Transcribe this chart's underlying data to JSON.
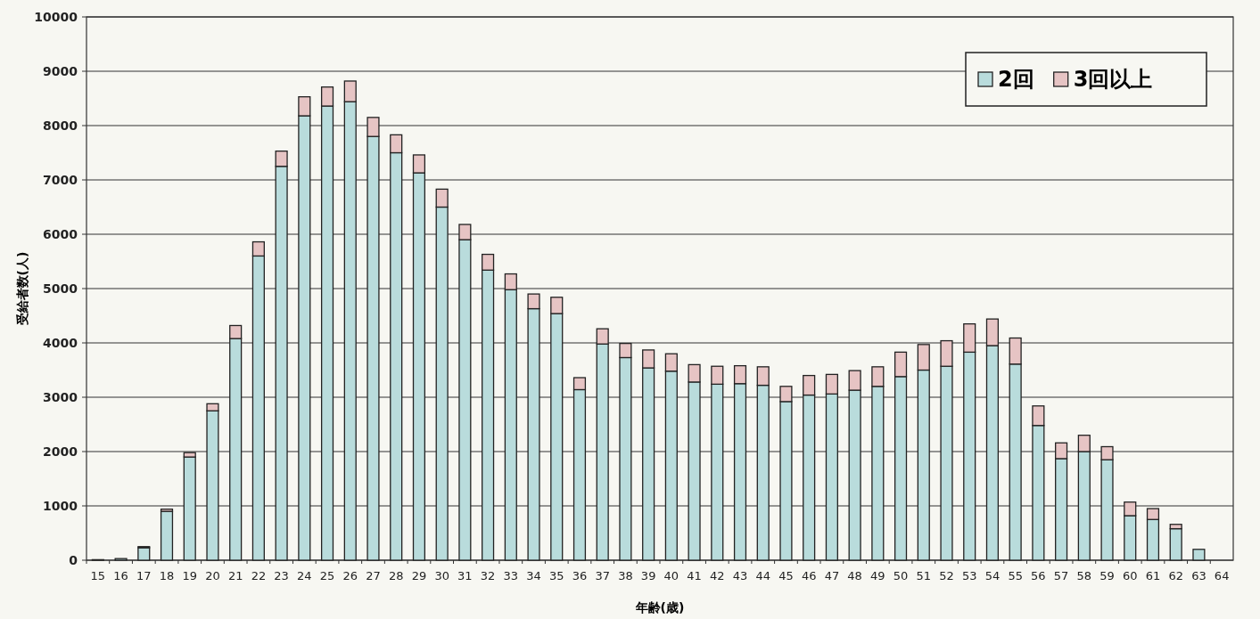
{
  "chart_data": {
    "type": "bar",
    "stacked": true,
    "xlabel": "年齢(歳)",
    "ylabel": "受給者数(人)",
    "categories": [
      "15",
      "16",
      "17",
      "18",
      "19",
      "20",
      "21",
      "22",
      "23",
      "24",
      "25",
      "26",
      "27",
      "28",
      "29",
      "30",
      "31",
      "32",
      "33",
      "34",
      "35",
      "36",
      "37",
      "38",
      "39",
      "40",
      "41",
      "42",
      "43",
      "44",
      "45",
      "46",
      "47",
      "48",
      "49",
      "50",
      "51",
      "52",
      "53",
      "54",
      "55",
      "56",
      "57",
      "58",
      "59",
      "60",
      "61",
      "62",
      "63",
      "64"
    ],
    "series": [
      {
        "name": "2回",
        "color": "#b9dcdc",
        "values": [
          10,
          30,
          230,
          900,
          1900,
          2750,
          4080,
          5600,
          7250,
          8180,
          8360,
          8440,
          7800,
          7500,
          7130,
          6500,
          5900,
          5340,
          4980,
          4630,
          4540,
          3140,
          3980,
          3730,
          3540,
          3480,
          3280,
          3240,
          3250,
          3220,
          2920,
          3040,
          3060,
          3130,
          3200,
          3380,
          3500,
          3570,
          3830,
          3950,
          3610,
          2480,
          1870,
          2000,
          1850,
          820,
          750,
          580,
          200,
          0
        ]
      },
      {
        "name": "3回以上",
        "color": "#e6c4c4",
        "values": [
          null,
          null,
          20,
          40,
          80,
          130,
          240,
          260,
          280,
          350,
          350,
          380,
          350,
          330,
          330,
          330,
          280,
          290,
          290,
          270,
          300,
          220,
          280,
          260,
          330,
          320,
          320,
          330,
          330,
          340,
          280,
          360,
          360,
          360,
          360,
          450,
          470,
          470,
          520,
          490,
          480,
          360,
          290,
          300,
          240,
          250,
          200,
          80,
          0,
          0
        ]
      }
    ],
    "ylim": [
      0,
      10000
    ],
    "yticks": [
      0,
      1000,
      2000,
      3000,
      4000,
      5000,
      6000,
      7000,
      8000,
      9000,
      10000
    ],
    "grid": "y",
    "legend": "top right"
  }
}
